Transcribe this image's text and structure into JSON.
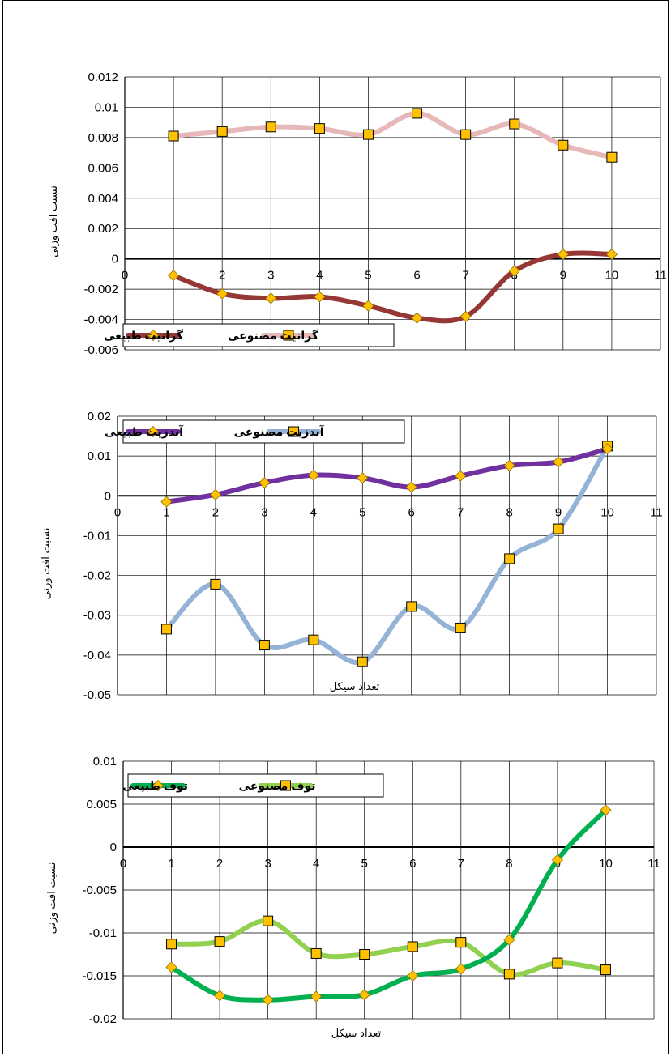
{
  "chart_data": [
    {
      "type": "line",
      "ylabel": "نسبت افت وزنی",
      "xlabel": "",
      "ylim": [
        -0.006,
        0.012
      ],
      "ystep": 0.002,
      "xlim": [
        0,
        11
      ],
      "y_tick_labels": [
        "-0.006",
        "-0.004",
        "-0.002",
        "0",
        "0.002",
        "0.004",
        "0.006",
        "0.008",
        "0.01",
        "0.012"
      ],
      "x_tick_labels": [
        "0",
        "1",
        "2",
        "3",
        "4",
        "5",
        "6",
        "7",
        "8",
        "9",
        "10",
        "11"
      ],
      "grid": true,
      "legend_position": "bottom-left",
      "series": [
        {
          "name": "گرانیت طبیعی",
          "marker": "diamond",
          "color": "#953735",
          "x": [
            1,
            2,
            3,
            4,
            5,
            6,
            7,
            8,
            9,
            10
          ],
          "values": [
            -0.0011,
            -0.0023,
            -0.0026,
            -0.0025,
            -0.0031,
            -0.0039,
            -0.0038,
            -0.0008,
            0.0003,
            0.0003
          ]
        },
        {
          "name": "گرانیت مصنوعی",
          "marker": "square",
          "color": "#e6b9b8",
          "x": [
            1,
            2,
            3,
            4,
            5,
            6,
            7,
            8,
            9,
            10
          ],
          "values": [
            0.0081,
            0.0084,
            0.0087,
            0.0086,
            0.0082,
            0.0096,
            0.0082,
            0.0089,
            0.0075,
            0.0067
          ]
        }
      ]
    },
    {
      "type": "line",
      "ylabel": "نسبت افت وزنی",
      "xlabel": "تعداد سیکل",
      "ylim": [
        -0.05,
        0.02
      ],
      "ystep": 0.01,
      "xlim": [
        0,
        11
      ],
      "y_tick_labels": [
        "-0.05",
        "-0.04",
        "-0.03",
        "-0.02",
        "-0.01",
        "0",
        "0.01",
        "0.02"
      ],
      "x_tick_labels": [
        "0",
        "1",
        "2",
        "3",
        "4",
        "5",
        "6",
        "7",
        "8",
        "9",
        "10",
        "11"
      ],
      "grid": true,
      "legend_position": "top-left",
      "series": [
        {
          "name": "آندزیت طبیعی",
          "marker": "diamond",
          "color": "#7030a0",
          "x": [
            1,
            2,
            3,
            4,
            5,
            6,
            7,
            8,
            9,
            10
          ],
          "values": [
            -0.0015,
            0.0003,
            0.0033,
            0.0052,
            0.0045,
            0.0022,
            0.005,
            0.0076,
            0.0085,
            0.0118
          ]
        },
        {
          "name": "آندزیت مصنوعی",
          "marker": "square",
          "color": "#95b3d7",
          "x": [
            1,
            2,
            3,
            4,
            5,
            6,
            7,
            8,
            9,
            10
          ],
          "values": [
            -0.0335,
            -0.0222,
            -0.0375,
            -0.0362,
            -0.0417,
            -0.0278,
            -0.0332,
            -0.0158,
            -0.0083,
            0.0125
          ]
        }
      ]
    },
    {
      "type": "line",
      "ylabel": "نسبت افت وزنی",
      "xlabel": "تعداد سیکل",
      "ylim": [
        -0.02,
        0.01
      ],
      "ystep": 0.005,
      "xlim": [
        0,
        11
      ],
      "y_tick_labels": [
        "-0.02",
        "-0.015",
        "-0.01",
        "-0.005",
        "0",
        "0.005",
        "0.01"
      ],
      "x_tick_labels": [
        "0",
        "1",
        "2",
        "3",
        "4",
        "5",
        "6",
        "7",
        "8",
        "9",
        "10",
        "11"
      ],
      "grid": true,
      "legend_position": "top-left",
      "series": [
        {
          "name": "توف طبیعی",
          "marker": "diamond",
          "color": "#00b050",
          "x": [
            1,
            2,
            3,
            4,
            5,
            6,
            7,
            8,
            9,
            10
          ],
          "values": [
            -0.014,
            -0.0173,
            -0.0178,
            -0.0174,
            -0.0172,
            -0.015,
            -0.0142,
            -0.0108,
            -0.0015,
            0.0043
          ]
        },
        {
          "name": "توف مصنوعی",
          "marker": "square",
          "color": "#92d050",
          "x": [
            1,
            2,
            3,
            4,
            5,
            6,
            7,
            8,
            9,
            10
          ],
          "values": [
            -0.0113,
            -0.011,
            -0.0086,
            -0.0124,
            -0.0125,
            -0.0116,
            -0.0111,
            -0.0148,
            -0.0135,
            -0.0143
          ]
        }
      ]
    }
  ]
}
